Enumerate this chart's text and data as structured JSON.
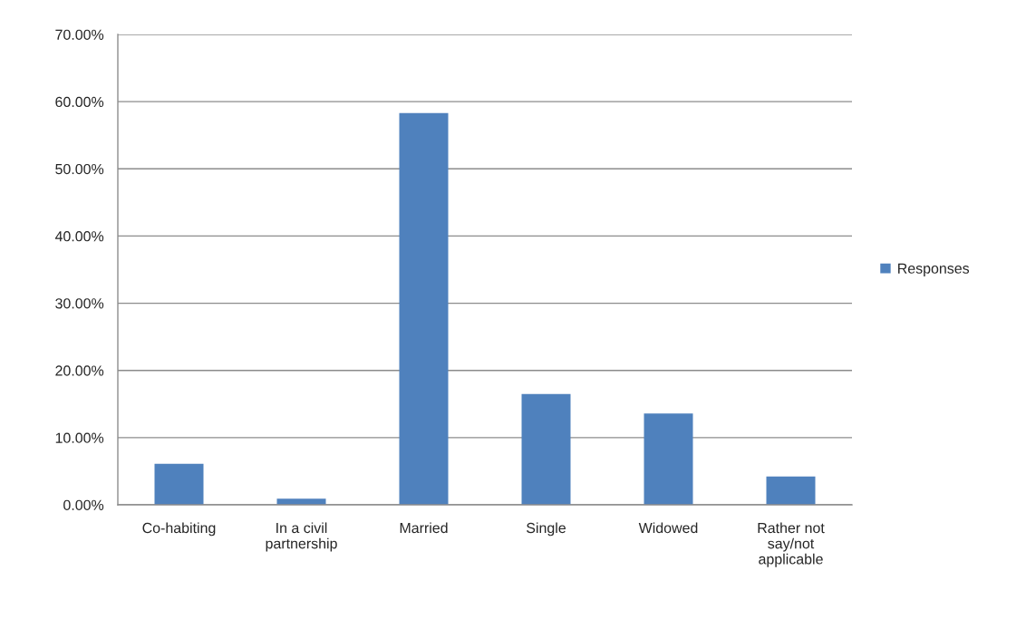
{
  "chart_data": {
    "type": "bar",
    "categories": [
      "Co-habiting",
      "In a civil\npartnership",
      "Married",
      "Single",
      "Widowed",
      "Rather not\nsay/not\napplicable"
    ],
    "series": [
      {
        "name": "Responses",
        "color": "#4f81bd",
        "values": [
          6.1,
          0.9,
          58.3,
          16.5,
          13.6,
          4.2
        ]
      }
    ],
    "ylim": [
      0,
      70
    ],
    "yticks": [
      {
        "value": 0,
        "label": "0.00%"
      },
      {
        "value": 10,
        "label": "10.00%"
      },
      {
        "value": 20,
        "label": "20.00%"
      },
      {
        "value": 30,
        "label": "30.00%"
      },
      {
        "value": 40,
        "label": "40.00%"
      },
      {
        "value": 50,
        "label": "50.00%"
      },
      {
        "value": 60,
        "label": "60.00%"
      },
      {
        "value": 70,
        "label": "70.00%"
      }
    ],
    "grid": "y",
    "legend": "right"
  }
}
